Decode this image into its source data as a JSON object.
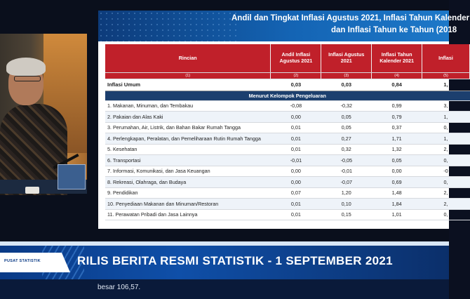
{
  "slide": {
    "title_line1": "Andil dan Tingkat Inflasi Agustus 2021, Inflasi Tahun Kalender",
    "title_line2": "dan Inflasi Tahun ke Tahun (2018"
  },
  "table": {
    "headers": [
      "Rincian",
      "Andil Inflasi Agustus 2021",
      "Inflasi Agustus 2021",
      "Inflasi Tahun Kalender 2021",
      "Inflasi"
    ],
    "col_numbers": [
      "(1)",
      "(2)",
      "(3)",
      "(4)",
      "(5)"
    ],
    "total": {
      "label": "Inflasi Umum",
      "values": [
        "0,03",
        "0,03",
        "0,84",
        "1,"
      ]
    },
    "group_label": "Menurut Kelompok Pengeluaran",
    "rows": [
      {
        "label": "1.  Makanan, Minuman, dan Tembakau",
        "values": [
          "-0,08",
          "-0,32",
          "0,99",
          "3,"
        ]
      },
      {
        "label": "2.  Pakaian dan Alas Kaki",
        "values": [
          "0,00",
          "0,05",
          "0,79",
          "1,"
        ]
      },
      {
        "label": "3.  Perumahan, Air, Listrik, dan Bahan Bakar Rumah Tangga",
        "values": [
          "0,01",
          "0,05",
          "0,37",
          "0,"
        ]
      },
      {
        "label": "4.  Perlengkapan, Peralatan, dan Pemeliharaan Rutin Rumah Tangga",
        "values": [
          "0,01",
          "0,27",
          "1,71",
          "1,"
        ]
      },
      {
        "label": "5.  Kesehatan",
        "values": [
          "0,01",
          "0,32",
          "1,32",
          "2,"
        ]
      },
      {
        "label": "6.  Transportasi",
        "values": [
          "-0,01",
          "-0,05",
          "0,05",
          "0,"
        ]
      },
      {
        "label": "7.  Informasi, Komunikasi, dan Jasa Keuangan",
        "values": [
          "0,00",
          "-0,01",
          "0,00",
          "-0"
        ]
      },
      {
        "label": "8.  Rekreasi, Olahraga, dan Budaya",
        "values": [
          "0,00",
          "-0,07",
          "0,69",
          "0,"
        ]
      },
      {
        "label": "9.  Pendidikan",
        "values": [
          "0,07",
          "1,20",
          "1,48",
          "2,"
        ]
      },
      {
        "label": "10. Penyediaan Makanan dan Minuman/Restoran",
        "values": [
          "0,01",
          "0,10",
          "1,84",
          "2,"
        ]
      },
      {
        "label": "11. Perawatan Pribadi dan Jasa Lainnya",
        "values": [
          "0,01",
          "0,15",
          "1,01",
          "0,"
        ]
      }
    ]
  },
  "broadcast": {
    "brand": "PUSAT STATISTIK",
    "headline": "RILIS BERITA RESMI STATISTIK - 1 SEPTEMBER 2021",
    "ticker": "besar 106,57."
  }
}
